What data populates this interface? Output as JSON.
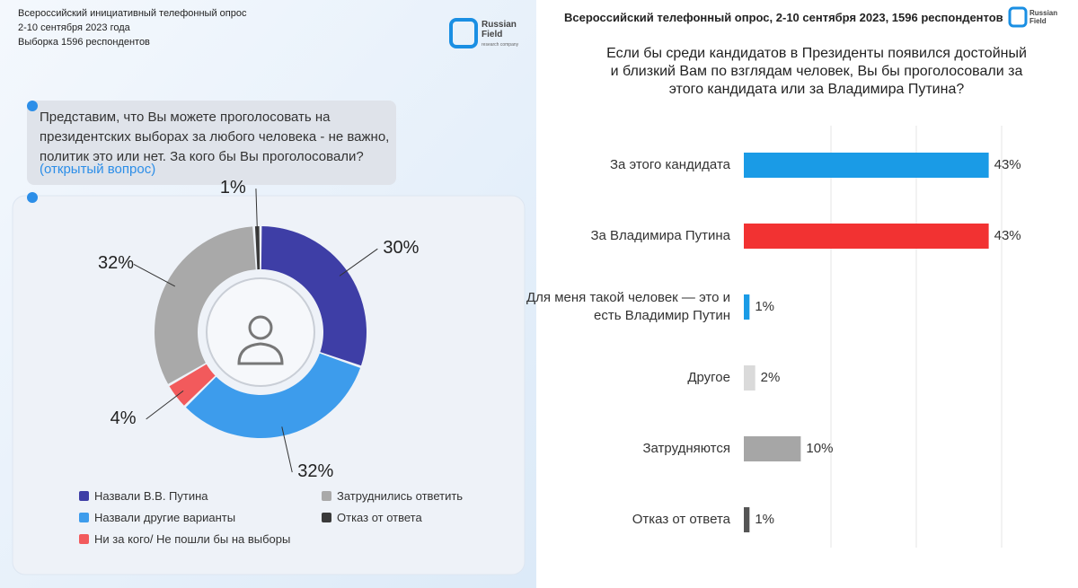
{
  "chart_data": [
    {
      "type": "donut",
      "header": [
        "Всероссийский инициативный телефонный опрос",
        "2-10 сентября 2023 года",
        "Выборка 1596 респондентов"
      ],
      "logo": "Russian Field",
      "logo_subtitle": "research company",
      "question": "Представим, что Вы можете проголосовать на президентских выборах за любого человека - не важно, политик это или нет. За кого бы Вы проголосовали?",
      "question_note": "(открытый вопрос)",
      "series": [
        {
          "name": "Назвали В.В. Путина",
          "color": "#3e3ea6",
          "values": [
            30
          ],
          "value_labels": [
            "30%"
          ]
        },
        {
          "name": "Назвали другие варианты",
          "color": "#3d9cec",
          "values": [
            32
          ],
          "value_labels": [
            "32%"
          ]
        },
        {
          "name": "Ни за кого/ Не пошли бы на выборы",
          "color": "#f25a5c",
          "values": [
            4
          ],
          "value_labels": [
            "4%"
          ]
        },
        {
          "name": "Затруднились ответить",
          "color": "#a9a9a9",
          "values": [
            32
          ],
          "value_labels": [
            "32%"
          ]
        },
        {
          "name": "Отказ от ответа",
          "color": "#3a3a3a",
          "values": [
            1
          ],
          "value_labels": [
            "1%"
          ]
        }
      ]
    },
    {
      "type": "hbar",
      "title": "Всероссийский телефонный опрос, 2-10 сентября 2023, 1596 респондентов",
      "logo": "Russian Field",
      "subtitle": "Если бы среди кандидатов в Президенты появился достойный и близкий Вам по взглядам человек, Вы бы проголосовали за этого кандидата или за Владимира Путина?",
      "categories": [
        "За этого кандидата",
        "За Владимира Путина",
        "Для меня такой человек — это и есть Владимир Путин",
        "Другое",
        "Затрудняются",
        "Отказ от ответа"
      ],
      "values": [
        43,
        43,
        1,
        2,
        10,
        1
      ],
      "value_labels": [
        "43%",
        "43%",
        "1%",
        "2%",
        "10%",
        "1%"
      ],
      "colors": [
        "#1a9be6",
        "#f23232",
        "#1a9be6",
        "#dadada",
        "#a6a6a6",
        "#555555"
      ],
      "xlim": [
        0,
        50
      ]
    }
  ]
}
